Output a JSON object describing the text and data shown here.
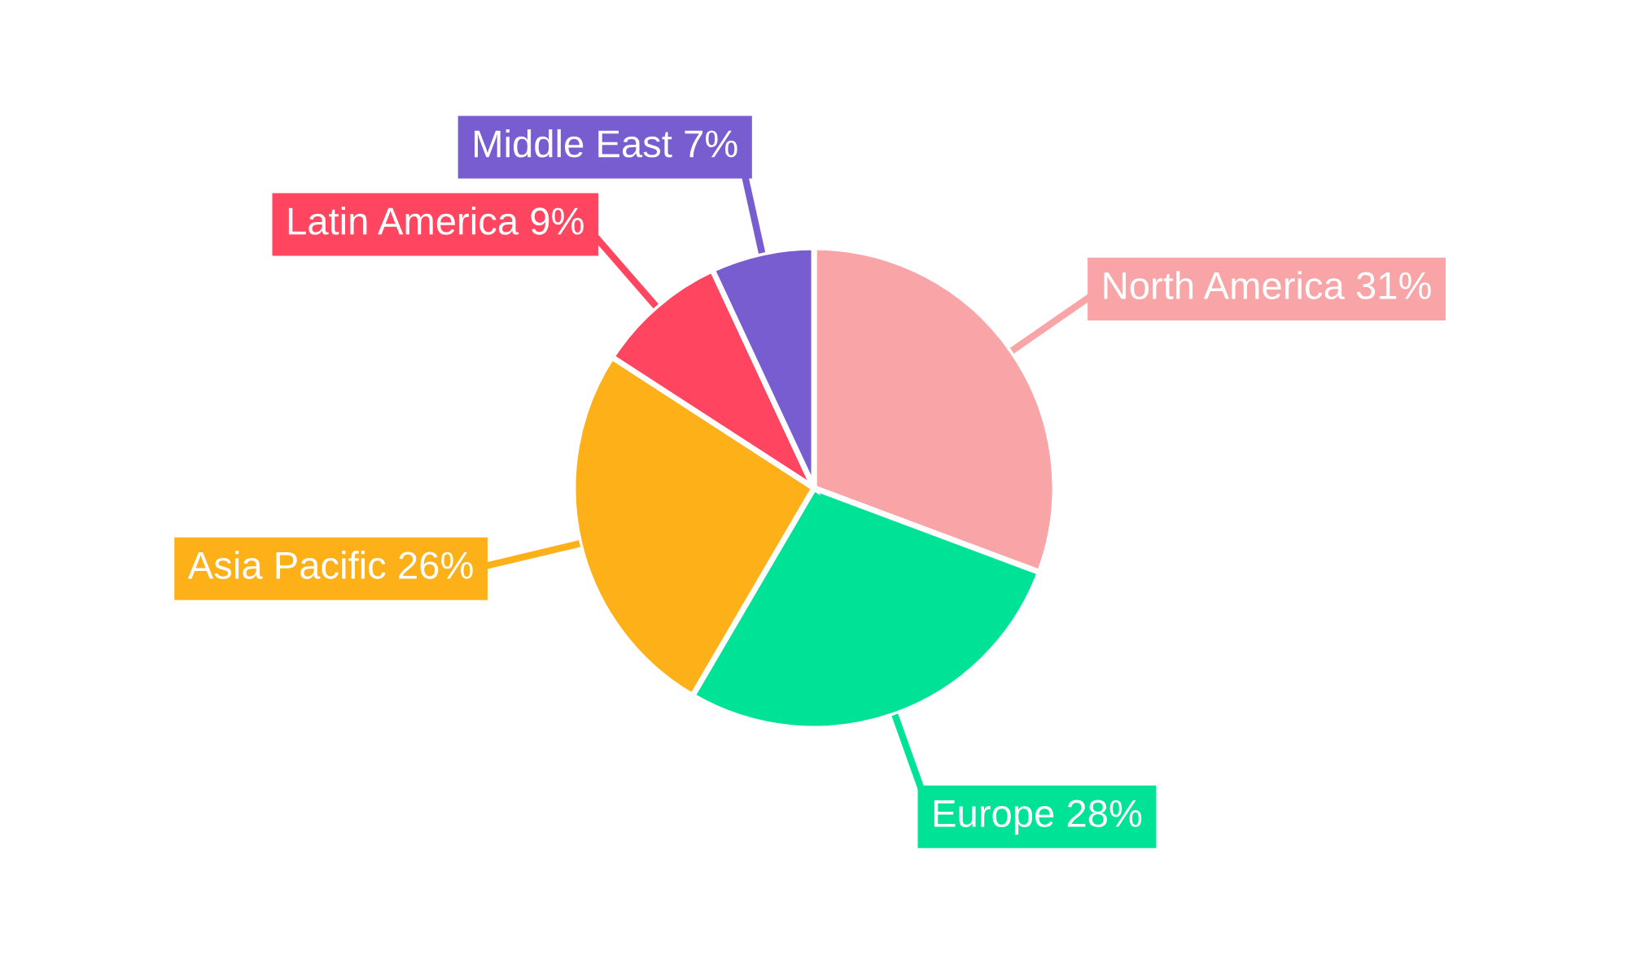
{
  "chart_data": {
    "type": "pie",
    "categories": [
      "North America",
      "Europe",
      "Asia Pacific",
      "Latin America",
      "Middle East"
    ],
    "values": [
      31,
      28,
      26,
      9,
      7
    ],
    "value_labels": [
      "31%",
      "28%",
      "26%",
      "9%",
      "7%"
    ],
    "colors": [
      "#f9a5a7",
      "#00e396",
      "#feb019",
      "#ff4560",
      "#775dd0"
    ],
    "legend": false
  }
}
